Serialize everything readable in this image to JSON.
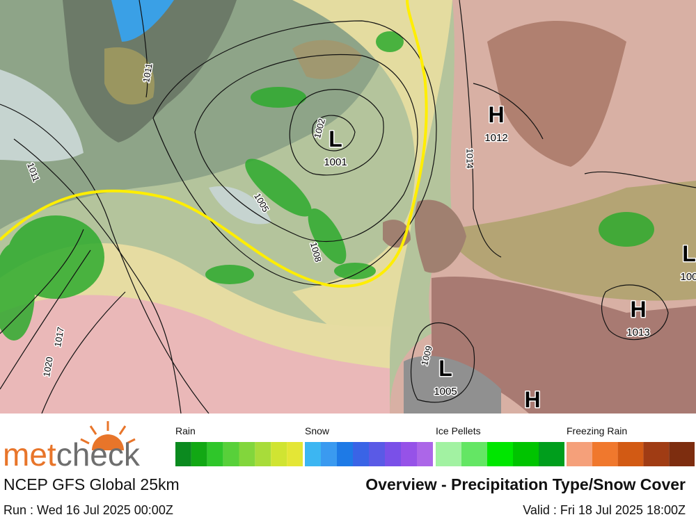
{
  "map": {
    "pressure_centers": [
      {
        "symbol": "L",
        "value": "1001"
      },
      {
        "symbol": "H",
        "value": "1012"
      },
      {
        "symbol": "L",
        "value": "1005"
      },
      {
        "symbol": "H",
        "value": "1013"
      },
      {
        "symbol": "H"
      },
      {
        "symbol": "L",
        "value": "100"
      }
    ],
    "isobar_labels": [
      "1011",
      "1002",
      "1011",
      "1005",
      "1008",
      "1014",
      "1017",
      "1020",
      "1009"
    ]
  },
  "legend": {
    "categories": [
      {
        "label": "Rain",
        "colors": [
          "#0b8a1f",
          "#12a814",
          "#2fc62a",
          "#58d03a",
          "#82d63c",
          "#a8dc3a",
          "#d0e432",
          "#e4e636"
        ]
      },
      {
        "label": "Snow",
        "colors": [
          "#3cb6f2",
          "#3a9af0",
          "#1e7ae6",
          "#3a64e6",
          "#5a5ae6",
          "#7a50e8",
          "#9652e8",
          "#ac66e8"
        ]
      },
      {
        "label": "Ice Pellets",
        "colors": [
          "#a2f2a2",
          "#64e664",
          "#00e600",
          "#00c400",
          "#009e1c"
        ]
      },
      {
        "label": "Freezing Rain",
        "colors": [
          "#f5a07a",
          "#f0782d",
          "#d25a14",
          "#a03c14",
          "#7d2d0f"
        ]
      }
    ]
  },
  "footer": {
    "logo": {
      "part1": "met",
      "part2": "check"
    },
    "model": "NCEP GFS Global 25km",
    "title": "Overview - Precipitation Type/Snow Cover",
    "run": "Run : Wed 16 Jul 2025 00:00Z",
    "valid": "Valid : Fri 18 Jul 2025 18:00Z"
  }
}
